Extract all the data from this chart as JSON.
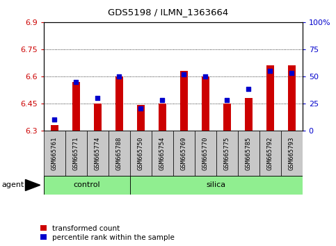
{
  "title": "GDS5198 / ILMN_1363664",
  "samples": [
    "GSM665761",
    "GSM665771",
    "GSM665774",
    "GSM665788",
    "GSM665750",
    "GSM665754",
    "GSM665769",
    "GSM665770",
    "GSM665775",
    "GSM665785",
    "GSM665792",
    "GSM665793"
  ],
  "transformed_count": [
    6.33,
    6.57,
    6.45,
    6.6,
    6.44,
    6.45,
    6.63,
    6.6,
    6.45,
    6.48,
    6.66,
    6.66
  ],
  "percentile_rank": [
    10,
    45,
    30,
    50,
    20,
    28,
    52,
    50,
    28,
    38,
    55,
    53
  ],
  "ylim_left": [
    6.3,
    6.9
  ],
  "ylim_right": [
    0,
    100
  ],
  "yticks_left": [
    6.3,
    6.45,
    6.6,
    6.75,
    6.9
  ],
  "ytick_labels_left": [
    "6.3",
    "6.45",
    "6.6",
    "6.75",
    "6.9"
  ],
  "yticks_right": [
    0,
    25,
    50,
    75,
    100
  ],
  "ytick_labels_right": [
    "0",
    "25",
    "50",
    "75",
    "100%"
  ],
  "bar_color": "#cc0000",
  "dot_color": "#0000cc",
  "bg_color": "#ffffff",
  "tick_label_color_left": "#cc0000",
  "tick_label_color_right": "#0000cc",
  "control_color": "#90ee90",
  "agent_label": "agent",
  "legend_red_label": "transformed count",
  "legend_blue_label": "percentile rank within the sample",
  "bar_width": 0.35,
  "dot_size": 22,
  "base_value": 6.3,
  "n_control": 4,
  "n_silica": 8,
  "control_group_label": "control",
  "silica_group_label": "silica"
}
